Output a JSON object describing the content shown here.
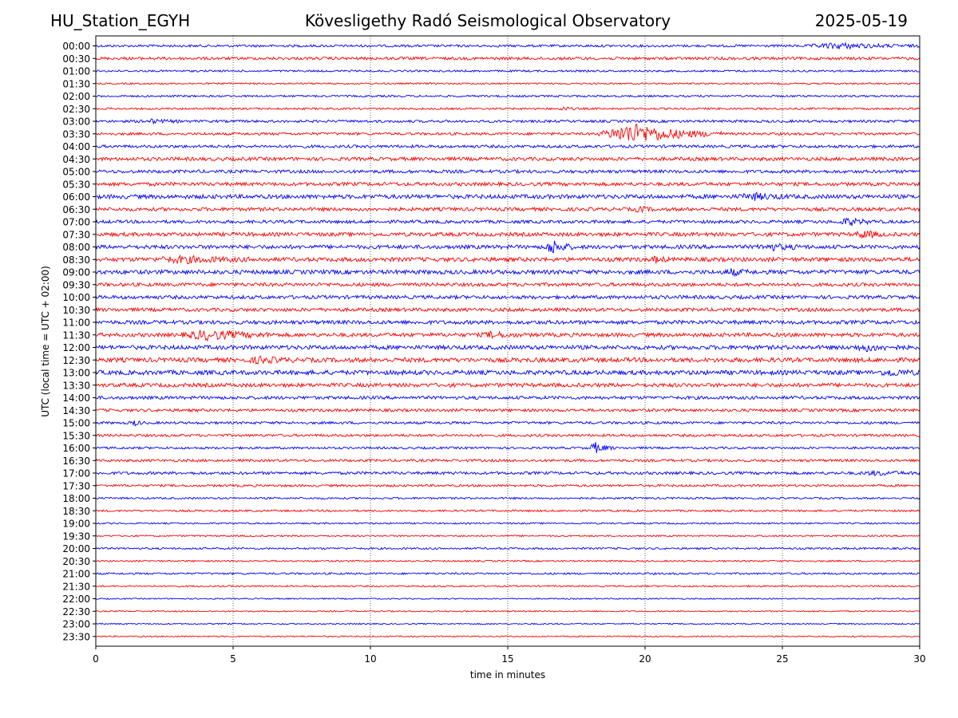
{
  "header": {
    "station": "HU_Station_EGYH",
    "title": "Kövesligethy Radó Seismological Observatory",
    "date": "2025-05-19"
  },
  "chart_data": {
    "type": "line",
    "title": "Kövesligethy Radó Seismological Observatory",
    "xlabel": "time in minutes",
    "ylabel": "UTC (local time = UTC + 02:00)",
    "xlim": [
      0,
      30
    ],
    "xticks": [
      "0",
      "5",
      "10",
      "15",
      "20",
      "25",
      "30"
    ],
    "grid": "vertical dotted at x ticks",
    "colors": {
      "even_rows": "#0000ff",
      "odd_rows": "#ff0000"
    },
    "rows": [
      "00:00",
      "00:30",
      "01:00",
      "01:30",
      "02:00",
      "02:30",
      "03:00",
      "03:30",
      "04:00",
      "04:30",
      "05:00",
      "05:30",
      "06:00",
      "06:30",
      "07:00",
      "07:30",
      "08:00",
      "08:30",
      "09:00",
      "09:30",
      "10:00",
      "10:30",
      "11:00",
      "11:30",
      "12:00",
      "12:30",
      "13:00",
      "13:30",
      "14:00",
      "14:30",
      "15:00",
      "15:30",
      "16:00",
      "16:30",
      "17:00",
      "17:30",
      "18:00",
      "18:30",
      "19:00",
      "19:30",
      "20:00",
      "20:30",
      "21:00",
      "21:30",
      "22:00",
      "22:30",
      "23:00",
      "23:30"
    ],
    "noise_level": [
      1.5,
      1.8,
      1.2,
      1.0,
      1.2,
      1.2,
      1.6,
      1.6,
      1.8,
      2.2,
      2.0,
      2.2,
      2.6,
      2.2,
      2.0,
      2.4,
      2.4,
      2.6,
      2.6,
      2.2,
      2.2,
      2.2,
      2.4,
      2.4,
      2.6,
      2.8,
      2.8,
      2.4,
      2.0,
      1.8,
      1.6,
      1.6,
      1.4,
      1.6,
      1.8,
      1.4,
      1.2,
      1.2,
      1.0,
      1.0,
      1.2,
      1.0,
      1.2,
      1.0,
      0.8,
      0.8,
      0.8,
      0.8
    ],
    "events": [
      {
        "row": "00:00",
        "start": 25.8,
        "end": 30.0,
        "amplitude": 3
      },
      {
        "row": "02:30",
        "start": 16.8,
        "end": 17.6,
        "amplitude": 2
      },
      {
        "row": "03:00",
        "start": 1.5,
        "end": 3.2,
        "amplitude": 2
      },
      {
        "row": "03:30",
        "start": 18.2,
        "end": 22.8,
        "amplitude": 12
      },
      {
        "row": "06:00",
        "start": 23.3,
        "end": 25.5,
        "amplitude": 3
      },
      {
        "row": "06:30",
        "start": 19.6,
        "end": 20.3,
        "amplitude": 3
      },
      {
        "row": "07:00",
        "start": 27.0,
        "end": 28.4,
        "amplitude": 4
      },
      {
        "row": "07:30",
        "start": 27.6,
        "end": 28.8,
        "amplitude": 4
      },
      {
        "row": "08:00",
        "start": 16.3,
        "end": 17.4,
        "amplitude": 8
      },
      {
        "row": "08:00",
        "start": 24.0,
        "end": 26.0,
        "amplitude": 3
      },
      {
        "row": "08:30",
        "start": 2.0,
        "end": 6.0,
        "amplitude": 3
      },
      {
        "row": "08:30",
        "start": 20.2,
        "end": 20.9,
        "amplitude": 3
      },
      {
        "row": "09:00",
        "start": 22.8,
        "end": 24.0,
        "amplitude": 3
      },
      {
        "row": "11:30",
        "start": 3.0,
        "end": 6.5,
        "amplitude": 5
      },
      {
        "row": "11:30",
        "start": 14.0,
        "end": 15.5,
        "amplitude": 3
      },
      {
        "row": "12:00",
        "start": 27.5,
        "end": 29.5,
        "amplitude": 3
      },
      {
        "row": "12:30",
        "start": 5.5,
        "end": 7.2,
        "amplitude": 3
      },
      {
        "row": "13:00",
        "start": 28.5,
        "end": 30.0,
        "amplitude": 3
      },
      {
        "row": "15:00",
        "start": 1.2,
        "end": 1.8,
        "amplitude": 3
      },
      {
        "row": "16:00",
        "start": 17.9,
        "end": 18.9,
        "amplitude": 6
      },
      {
        "row": "17:00",
        "start": 27.8,
        "end": 30.0,
        "amplitude": 2
      }
    ]
  }
}
